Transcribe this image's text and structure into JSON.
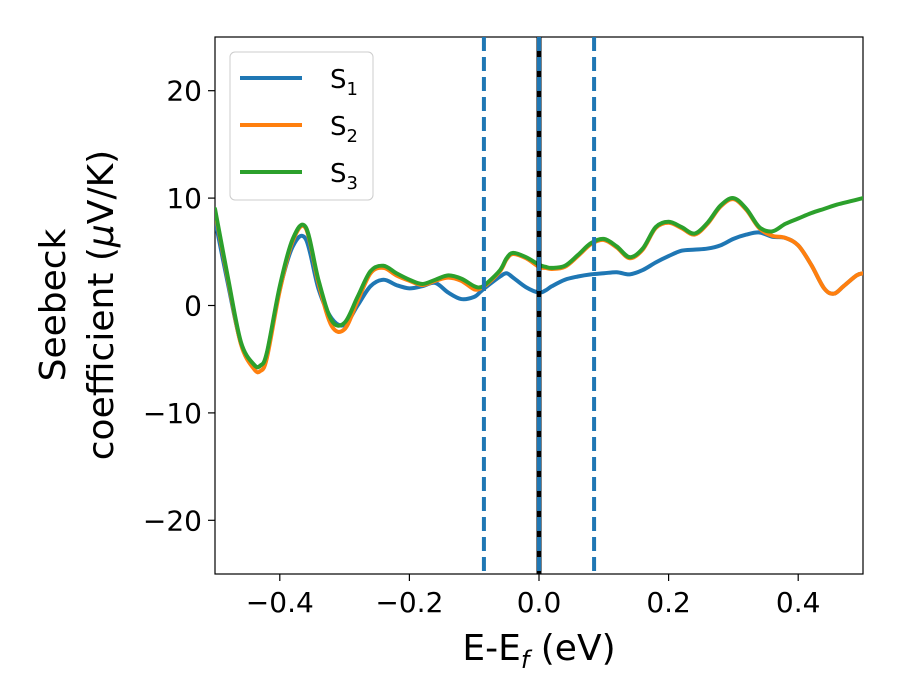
{
  "chart_data": {
    "type": "line",
    "xlabel": {
      "main": "E-E",
      "sub": "f",
      "tail": " (eV)"
    },
    "ylabel": {
      "line1": "Seebeck",
      "line2": "coefficient  (",
      "mu": "μ",
      "unit": "V/K)"
    },
    "xlim": [
      -0.5,
      0.5
    ],
    "ylim": [
      -25,
      25
    ],
    "xticks": [
      -0.4,
      -0.2,
      0.0,
      0.2,
      0.4
    ],
    "xtick_labels": [
      "−0.4",
      "−0.2",
      "0.0",
      "0.2",
      "0.4"
    ],
    "yticks": [
      -20,
      -10,
      0,
      10,
      20
    ],
    "ytick_labels": [
      "−20",
      "−10",
      "0",
      "10",
      "20"
    ],
    "grid": false,
    "legend_position": "top-left",
    "vlines": [
      {
        "x": -0.085,
        "style": "dashed",
        "color": "#1f77b4"
      },
      {
        "x": 0.0,
        "style": "solid",
        "color": "#000000"
      },
      {
        "x": 0.0,
        "style": "dashed",
        "color": "#1f77b4"
      },
      {
        "x": 0.085,
        "style": "dashed",
        "color": "#1f77b4"
      }
    ],
    "series": [
      {
        "name": "S",
        "sub": "1",
        "color": "#1f77b4",
        "x": [
          -0.5,
          -0.48,
          -0.46,
          -0.44,
          -0.43,
          -0.42,
          -0.4,
          -0.38,
          -0.36,
          -0.34,
          -0.32,
          -0.3,
          -0.28,
          -0.26,
          -0.24,
          -0.22,
          -0.2,
          -0.18,
          -0.16,
          -0.14,
          -0.12,
          -0.1,
          -0.09,
          -0.08,
          -0.06,
          -0.05,
          -0.04,
          -0.02,
          0.0,
          0.01,
          0.02,
          0.04,
          0.06,
          0.08,
          0.1,
          0.12,
          0.14,
          0.16,
          0.18,
          0.2,
          0.22,
          0.24,
          0.26,
          0.28,
          0.3,
          0.32,
          0.34,
          0.36,
          0.38,
          0.4,
          0.42,
          0.44,
          0.455,
          0.47,
          0.49,
          0.5
        ],
        "y": [
          8,
          2,
          -3.5,
          -5.5,
          -5.6,
          -4.5,
          1.5,
          5.5,
          6.2,
          1.5,
          -1.2,
          -1.8,
          0,
          1.8,
          2.4,
          1.9,
          1.6,
          1.8,
          2.1,
          1.2,
          0.6,
          0.8,
          1.3,
          1.8,
          2.7,
          3,
          2.6,
          1.7,
          1.2,
          1.4,
          1.8,
          2.4,
          2.7,
          2.9,
          3.0,
          3.1,
          2.9,
          3.3,
          4,
          4.6,
          5.1,
          5.2,
          5.3,
          5.6,
          6.2,
          6.6,
          6.8,
          6.4,
          6.3,
          5.6,
          3.8,
          1.6,
          1.1,
          1.8,
          2.8,
          3.0
        ]
      },
      {
        "name": "S",
        "sub": "2",
        "color": "#ff7f0e",
        "x": [
          -0.5,
          -0.48,
          -0.46,
          -0.44,
          -0.43,
          -0.42,
          -0.4,
          -0.38,
          -0.36,
          -0.34,
          -0.32,
          -0.3,
          -0.28,
          -0.26,
          -0.24,
          -0.22,
          -0.2,
          -0.18,
          -0.16,
          -0.14,
          -0.12,
          -0.1,
          -0.09,
          -0.08,
          -0.06,
          -0.05,
          -0.04,
          -0.02,
          0.0,
          0.01,
          0.02,
          0.04,
          0.06,
          0.08,
          0.1,
          0.12,
          0.14,
          0.16,
          0.18,
          0.2,
          0.22,
          0.24,
          0.26,
          0.28,
          0.3,
          0.32,
          0.34,
          0.36,
          0.38,
          0.4,
          0.42,
          0.44,
          0.455,
          0.47,
          0.49,
          0.5
        ],
        "y": [
          8.8,
          2.4,
          -3.6,
          -5.9,
          -6.1,
          -4.9,
          1.4,
          6,
          7.2,
          2,
          -1.9,
          -2.2,
          0.4,
          3,
          3.5,
          2.8,
          2.3,
          1.9,
          2.3,
          2.6,
          2.3,
          1.5,
          1.6,
          2.0,
          3.2,
          4.3,
          4.8,
          4.4,
          3.6,
          3.5,
          3.4,
          3.6,
          4.6,
          5.7,
          6.1,
          5.4,
          4.4,
          5.2,
          7.2,
          7.7,
          7.2,
          6.6,
          7.6,
          9.2,
          9.9,
          8.9,
          7.2,
          6.5,
          6.3,
          5.6,
          3.8,
          1.6,
          1.1,
          1.8,
          2.8,
          3.0
        ]
      },
      {
        "name": "S",
        "sub": "3",
        "color": "#2ca02c",
        "x": [
          -0.5,
          -0.48,
          -0.46,
          -0.44,
          -0.43,
          -0.42,
          -0.4,
          -0.38,
          -0.36,
          -0.34,
          -0.32,
          -0.3,
          -0.28,
          -0.26,
          -0.24,
          -0.22,
          -0.2,
          -0.18,
          -0.16,
          -0.14,
          -0.12,
          -0.1,
          -0.09,
          -0.08,
          -0.06,
          -0.05,
          -0.04,
          -0.02,
          0.0,
          0.01,
          0.02,
          0.04,
          0.06,
          0.08,
          0.1,
          0.12,
          0.14,
          0.16,
          0.18,
          0.2,
          0.22,
          0.24,
          0.26,
          0.28,
          0.3,
          0.32,
          0.34,
          0.36,
          0.38,
          0.4,
          0.42,
          0.44,
          0.46,
          0.48,
          0.5
        ],
        "y": [
          9,
          2.6,
          -3.4,
          -5.5,
          -5.6,
          -4.4,
          1.8,
          6.2,
          7.3,
          2.3,
          -1.4,
          -1.6,
          0.8,
          3.2,
          3.7,
          3,
          2.4,
          2.0,
          2.4,
          2.8,
          2.5,
          1.8,
          1.7,
          2.1,
          3.3,
          4.4,
          4.9,
          4.5,
          3.8,
          3.6,
          3.5,
          3.7,
          4.7,
          5.8,
          6.2,
          5.5,
          4.5,
          5.3,
          7.3,
          7.8,
          7.3,
          6.7,
          7.7,
          9.3,
          10,
          9.0,
          7.3,
          6.9,
          7.6,
          8.1,
          8.6,
          9.0,
          9.4,
          9.7,
          10.0
        ]
      }
    ]
  }
}
